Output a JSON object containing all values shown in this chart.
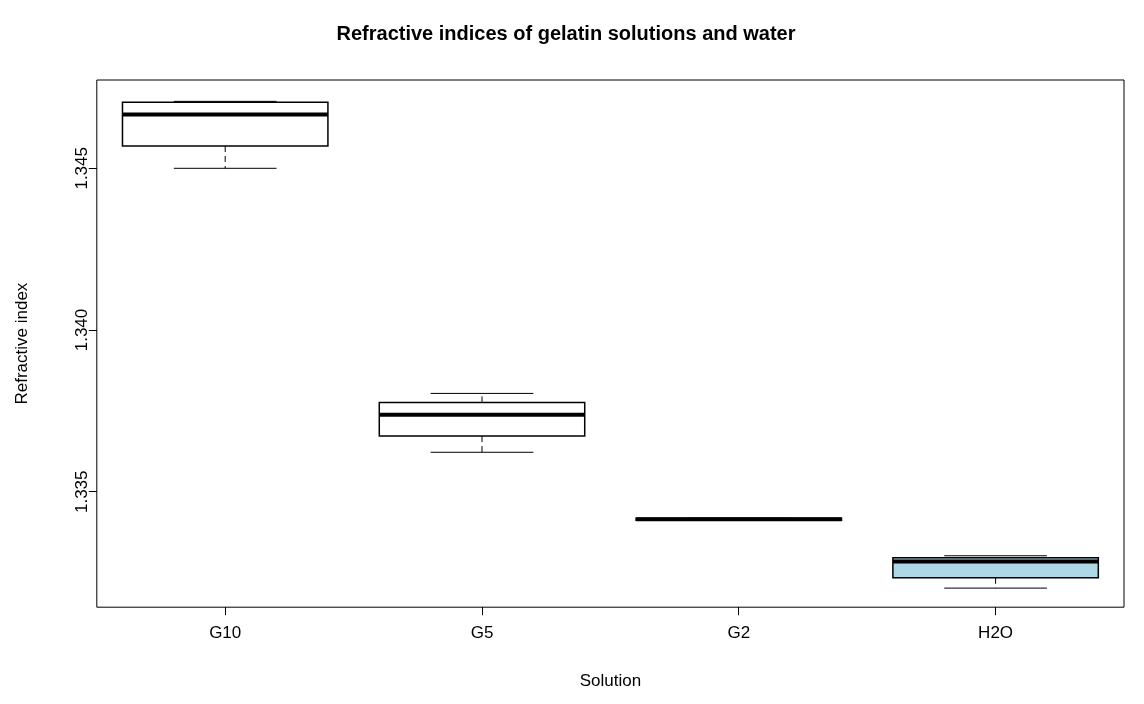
{
  "chart_data": {
    "type": "box",
    "title": "Refractive indices of gelatin solutions and water",
    "xlabel": "Solution",
    "ylabel": "Refractive index",
    "categories": [
      "G10",
      "G5",
      "G2",
      "H2O"
    ],
    "colors": [
      "#ffffff",
      "#ffffff",
      "#ffffff",
      "#add8e6"
    ],
    "boxes": [
      {
        "low": 1.345,
        "q1": 1.34569,
        "median": 1.34666,
        "q3": 1.34704,
        "high": 1.34707
      },
      {
        "low": 1.33622,
        "q1": 1.33672,
        "median": 1.33738,
        "q3": 1.33776,
        "high": 1.33804
      },
      {
        "low": 1.33412,
        "q1": 1.33412,
        "median": 1.33415,
        "q3": 1.33418,
        "high": 1.33418
      },
      {
        "low": 1.33202,
        "q1": 1.33234,
        "median": 1.33284,
        "q3": 1.33296,
        "high": 1.33302
      }
    ],
    "ylim": [
      1.33143,
      1.34773
    ],
    "yticks": [
      1.335,
      {
        "value": 1.34,
        "label": "1.340"
      },
      1.345
    ],
    "grid": false,
    "legend": false
  }
}
